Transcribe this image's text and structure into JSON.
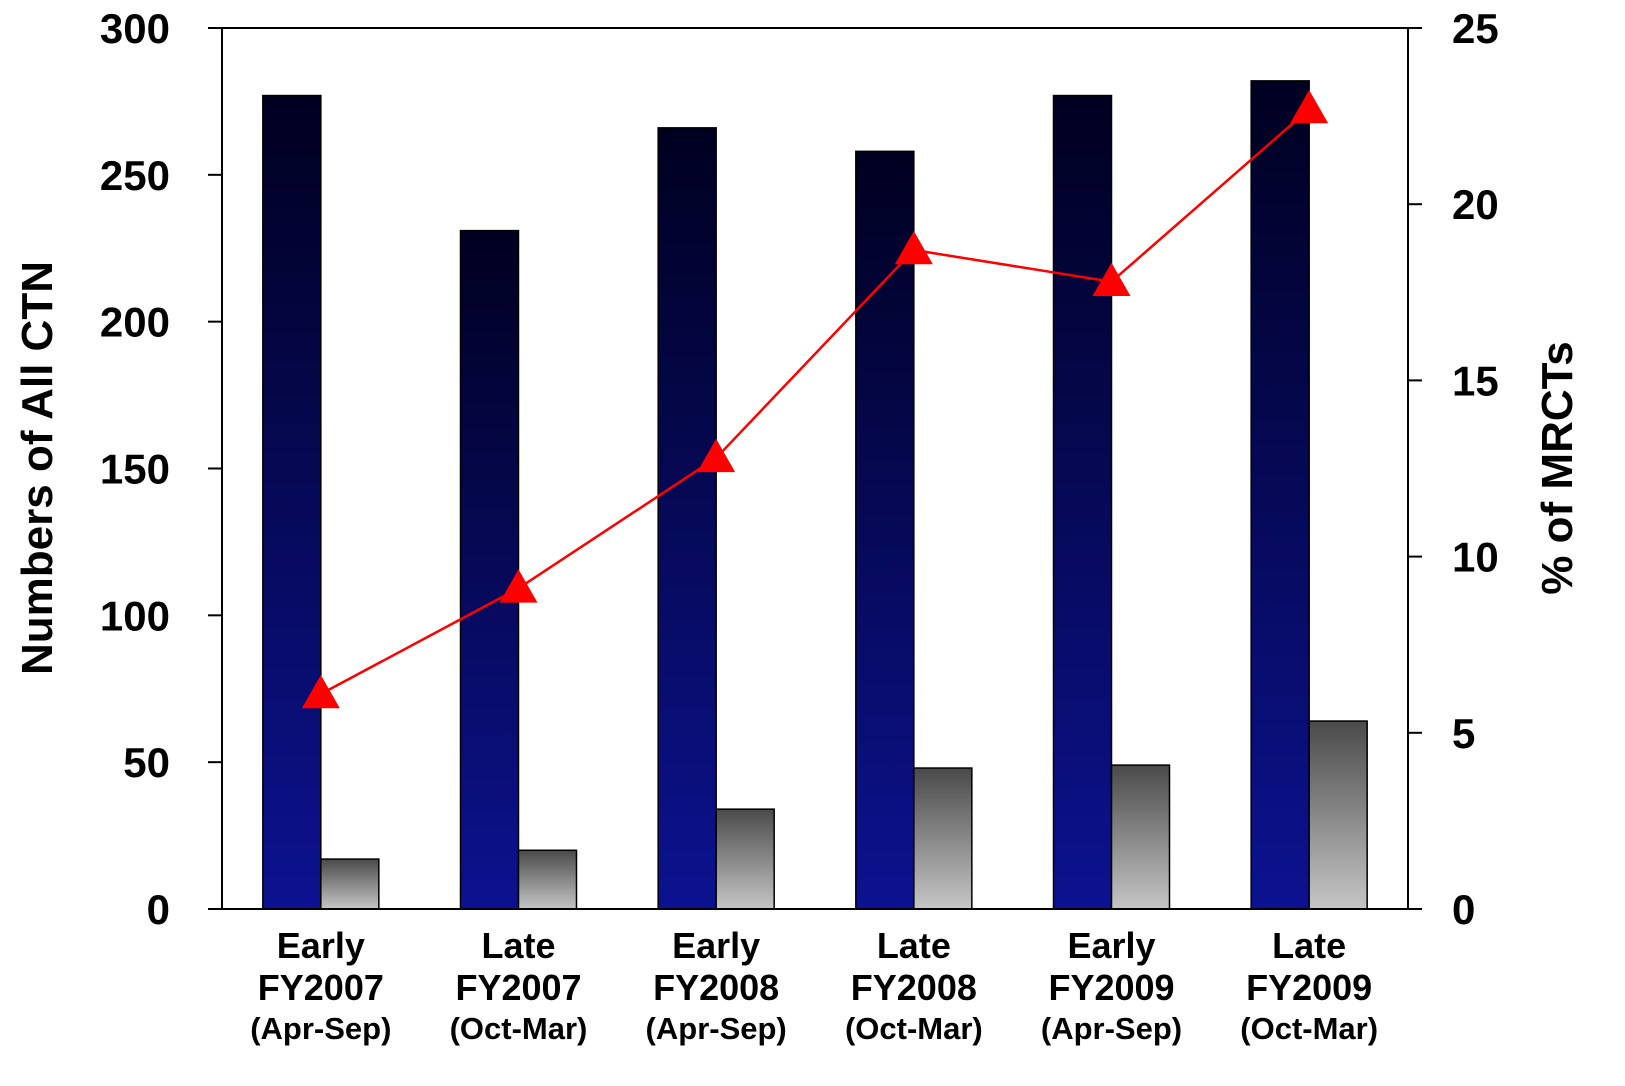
{
  "chart_data": {
    "type": "bar",
    "categories": [
      [
        "Early",
        "FY2007",
        "(Apr-Sep)"
      ],
      [
        "Late",
        "FY2007",
        "(Oct-Mar)"
      ],
      [
        "Early",
        "FY2008",
        "(Apr-Sep)"
      ],
      [
        "Late",
        "FY2008",
        "(Oct-Mar)"
      ],
      [
        "Early",
        "FY2009",
        "(Apr-Sep)"
      ],
      [
        "Late",
        "FY2009",
        "(Oct-Mar)"
      ]
    ],
    "series": [
      {
        "type": "bar",
        "axis": "left",
        "values": [
          277,
          231,
          266,
          258,
          277,
          282
        ],
        "color": "#0a0c6e"
      },
      {
        "type": "bar",
        "axis": "left",
        "values": [
          17,
          20,
          34,
          48,
          49,
          64
        ],
        "color": "#888888"
      },
      {
        "type": "line",
        "axis": "right",
        "values": [
          6.1,
          9.1,
          12.8,
          18.7,
          17.8,
          22.7
        ],
        "color": "#ff0000",
        "marker": "triangle"
      }
    ],
    "ylabel": "Numbers of All CTN",
    "y2label": "% of MRCTs",
    "ylim": [
      0,
      300
    ],
    "y2lim": [
      0,
      25
    ],
    "yticks": [
      "0",
      "50",
      "100",
      "150",
      "200",
      "250",
      "300"
    ],
    "y2ticks": [
      "0",
      "5",
      "10",
      "15",
      "20",
      "25"
    ],
    "grid": false,
    "legend": "none"
  }
}
